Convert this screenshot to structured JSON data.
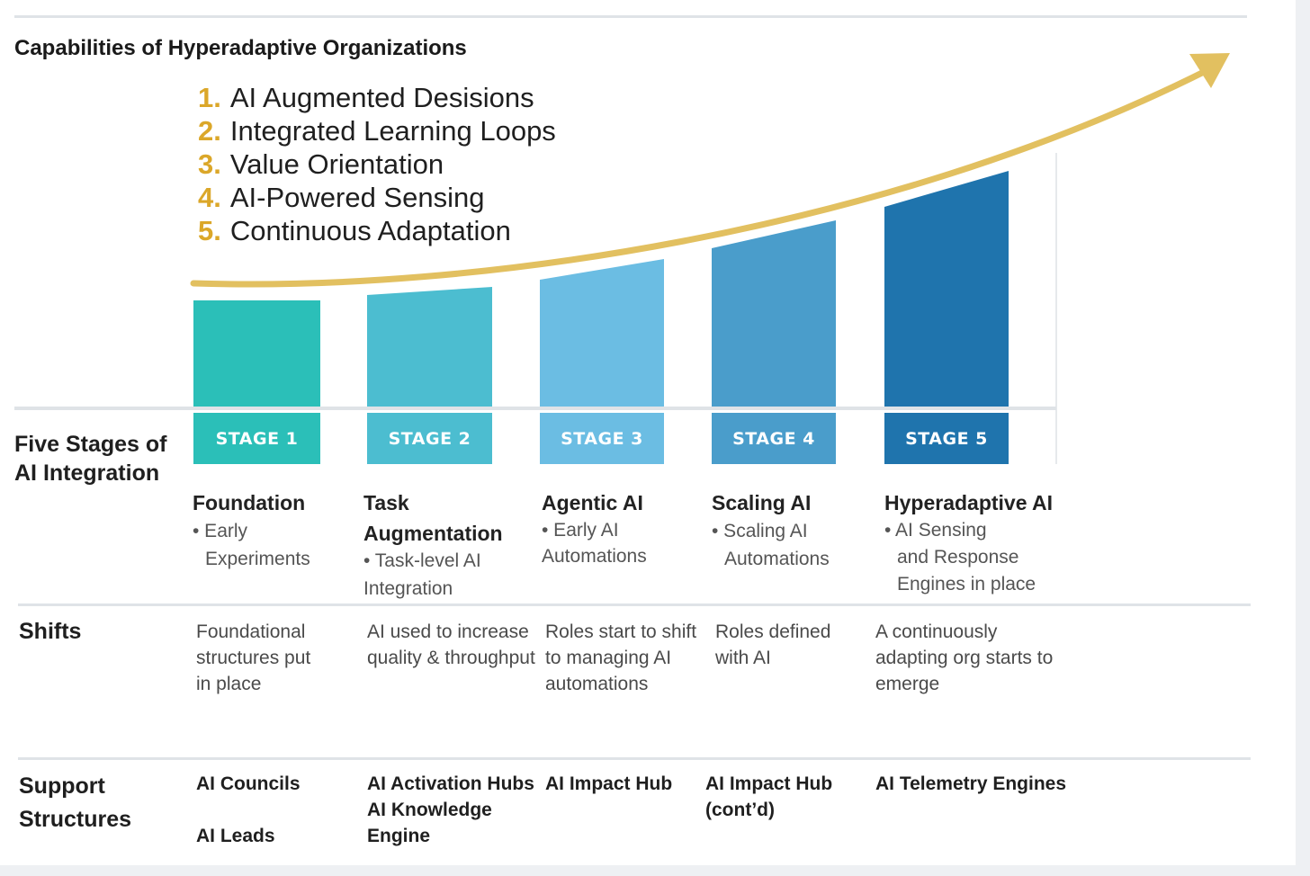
{
  "title": "Capabilities of Hyperadaptive Organizations",
  "capabilities": [
    {
      "num": "1.",
      "label": "AI Augmented Desisions"
    },
    {
      "num": "2.",
      "label": "Integrated Learning Loops"
    },
    {
      "num": "3.",
      "label": "Value Orientation"
    },
    {
      "num": "4.",
      "label": "AI-Powered Sensing"
    },
    {
      "num": "5.",
      "label": "Continuous Adaptation"
    }
  ],
  "row_labels": {
    "stages": "Five Stages of AI Integration",
    "shifts": "Shifts",
    "support": "Support Structures"
  },
  "stages": [
    {
      "stage_label": "STAGE 1",
      "name": "Foundation",
      "desc_lines": [
        "• Early",
        "Experiments"
      ],
      "shift_lines": [
        "Foundational",
        "structures put",
        "in place"
      ],
      "support_lines": [
        "AI Councils",
        "",
        "AI Leads"
      ],
      "color": "#2bbfb8"
    },
    {
      "stage_label": "STAGE 2",
      "name_lines": [
        "Task",
        "Augmentation"
      ],
      "desc_lines": [
        "• Task-level AI",
        "Integration"
      ],
      "shift_lines": [
        "AI used to increase",
        "quality & throughput"
      ],
      "support_lines": [
        "AI Activation Hubs",
        "AI Knowledge",
        "Engine"
      ],
      "color": "#4cbdd0"
    },
    {
      "stage_label": "STAGE 3",
      "name": "Agentic AI",
      "desc_lines": [
        "• Early AI",
        "Automations"
      ],
      "shift_lines": [
        "Roles start to shift",
        "to managing AI",
        "automations"
      ],
      "support_lines": [
        "AI Impact Hub"
      ],
      "color": "#6bbde3"
    },
    {
      "stage_label": "STAGE 4",
      "name": "Scaling AI",
      "desc_lines": [
        "• Scaling AI",
        "Automations"
      ],
      "shift_lines": [
        "Roles defined",
        "with AI"
      ],
      "support_lines": [
        "AI Impact Hub",
        "(cont’d)"
      ],
      "color": "#4a9dcb"
    },
    {
      "stage_label": "STAGE 5",
      "name": "Hyperadaptive AI",
      "desc_lines": [
        "• AI Sensing",
        "and Response",
        "Engines in place"
      ],
      "shift_lines": [
        "A continuously",
        "adapting org starts to",
        "emerge"
      ],
      "support_lines": [
        "AI Telemetry Engines"
      ],
      "color": "#1f74ad"
    }
  ],
  "arrow_color": "#e2c060",
  "accent_number_color": "#dba729"
}
